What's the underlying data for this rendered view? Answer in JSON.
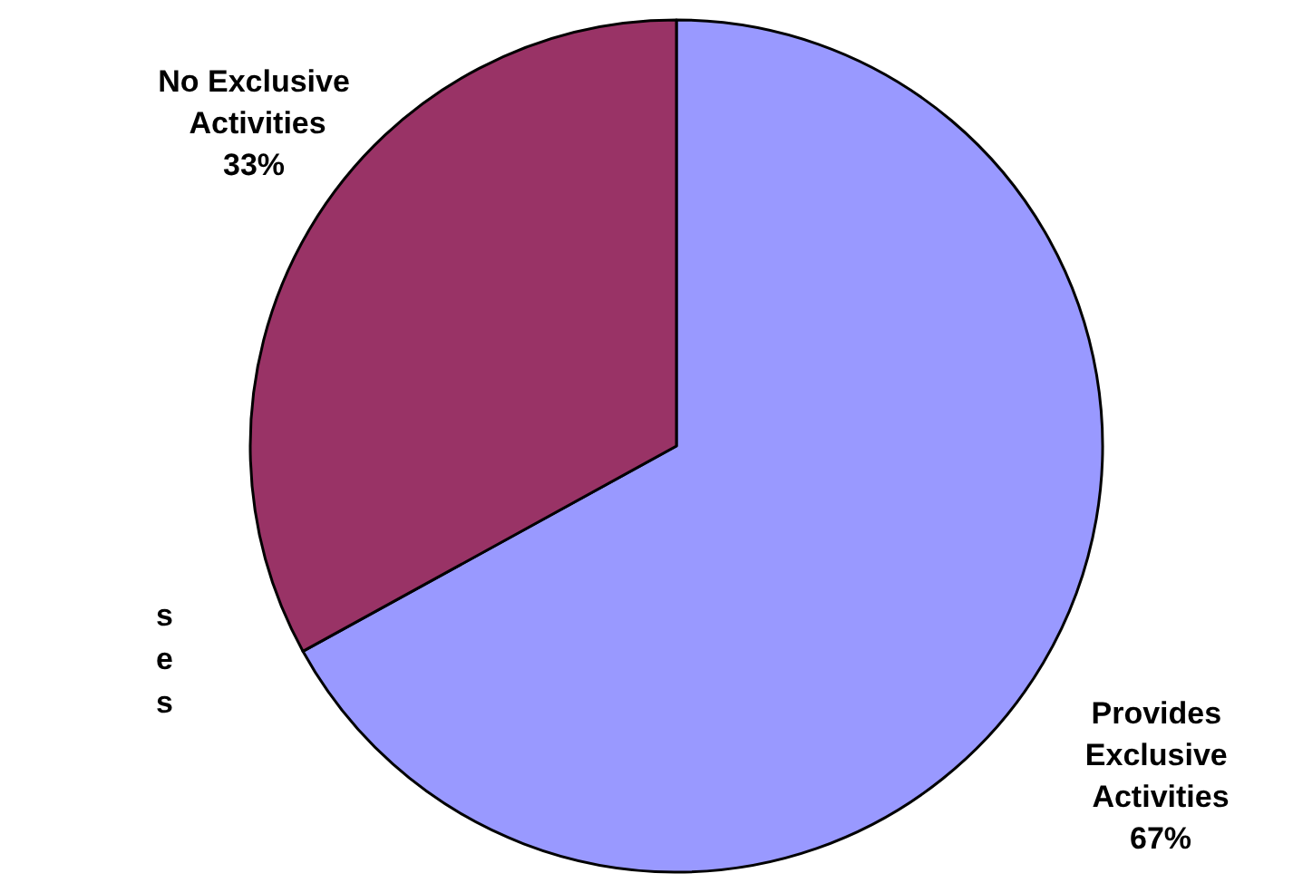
{
  "chart_data": {
    "type": "pie",
    "categories": [
      "Provides Exclusive Activities",
      "No Exclusive Activities"
    ],
    "values": [
      67,
      33
    ],
    "colors": [
      "#9999ff",
      "#993366"
    ],
    "value_labels": [
      "67%",
      "33%"
    ],
    "annotations": [
      "s",
      "e",
      "s"
    ]
  }
}
